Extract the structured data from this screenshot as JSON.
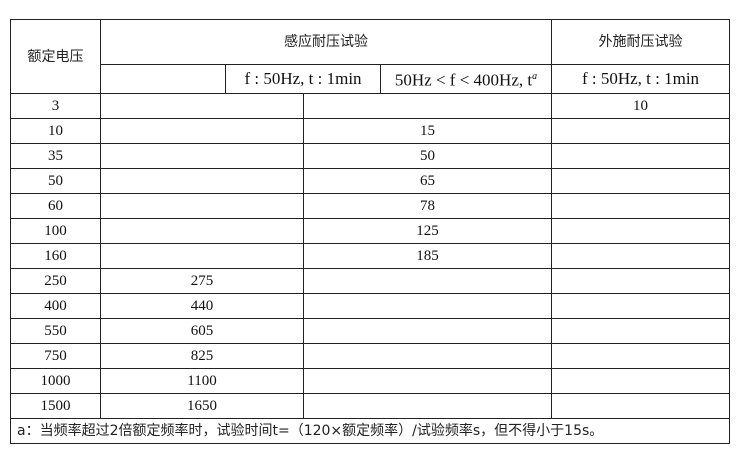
{
  "header": {
    "rated_voltage": "额定电压",
    "induced_test": "感应耐压试验",
    "applied_test": "外施耐压试验",
    "sub_induced_1": "f : 50Hz, t : 1min",
    "sub_induced_2": "50Hz < f < 400Hz, t",
    "sub_induced_2_sup": "a",
    "sub_applied": "f : 50Hz, t : 1min"
  },
  "rows_applied": [
    {
      "voltage": "3",
      "applied": "10"
    }
  ],
  "rows_induced_2": [
    {
      "voltage": "10",
      "value": "15"
    },
    {
      "voltage": "35",
      "value": "50"
    },
    {
      "voltage": "50",
      "value": "65"
    },
    {
      "voltage": "60",
      "value": "78"
    },
    {
      "voltage": "100",
      "value": "125"
    },
    {
      "voltage": "160",
      "value": "185"
    }
  ],
  "rows_induced_1": [
    {
      "voltage": "250",
      "value": "275"
    },
    {
      "voltage": "400",
      "value": "440"
    },
    {
      "voltage": "550",
      "value": "605"
    },
    {
      "voltage": "750",
      "value": "825"
    },
    {
      "voltage": "1000",
      "value": "1100"
    },
    {
      "voltage": "1500",
      "value": "1650"
    }
  ],
  "footnote": "a：当频率超过2倍额定频率时，试验时间t=（120×额定频率）/试验频率s，但不得小于15s。"
}
